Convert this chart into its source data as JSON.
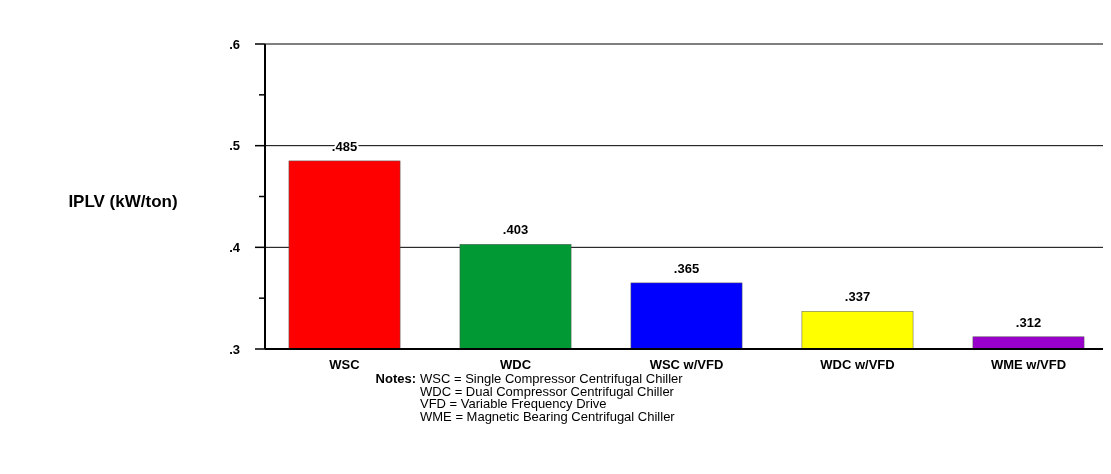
{
  "chart_data": {
    "type": "bar",
    "ylabel": "IPLV (kW/ton)",
    "categories": [
      "WSC",
      "WDC",
      "WSC w/VFD",
      "WDC w/VFD",
      "WME w/VFD"
    ],
    "values": [
      0.485,
      0.403,
      0.365,
      0.337,
      0.312
    ],
    "colors": [
      "#ff0000",
      "#009933",
      "#0000ff",
      "#ffff00",
      "#9900cc"
    ],
    "ylim": [
      0.3,
      0.6
    ],
    "yticks": [
      {
        "value": 0.3,
        "label": ".3"
      },
      {
        "value": 0.35,
        "label": null
      },
      {
        "value": 0.4,
        "label": ".4"
      },
      {
        "value": 0.45,
        "label": null
      },
      {
        "value": 0.5,
        "label": ".5"
      },
      {
        "value": 0.55,
        "label": null
      },
      {
        "value": 0.6,
        "label": ".6"
      }
    ],
    "value_labels": [
      ".485",
      ".403",
      ".365",
      ".337",
      ".312"
    ],
    "grid": "y",
    "annotations": [
      "Notes:",
      "WSC = Single Compressor Centrifugal Chiller",
      "WDC = Dual Compressor Centrifugal Chiller",
      "VFD = Variable Frequency Drive",
      "WME = Magnetic Bearing Centrifugal Chiller"
    ]
  }
}
